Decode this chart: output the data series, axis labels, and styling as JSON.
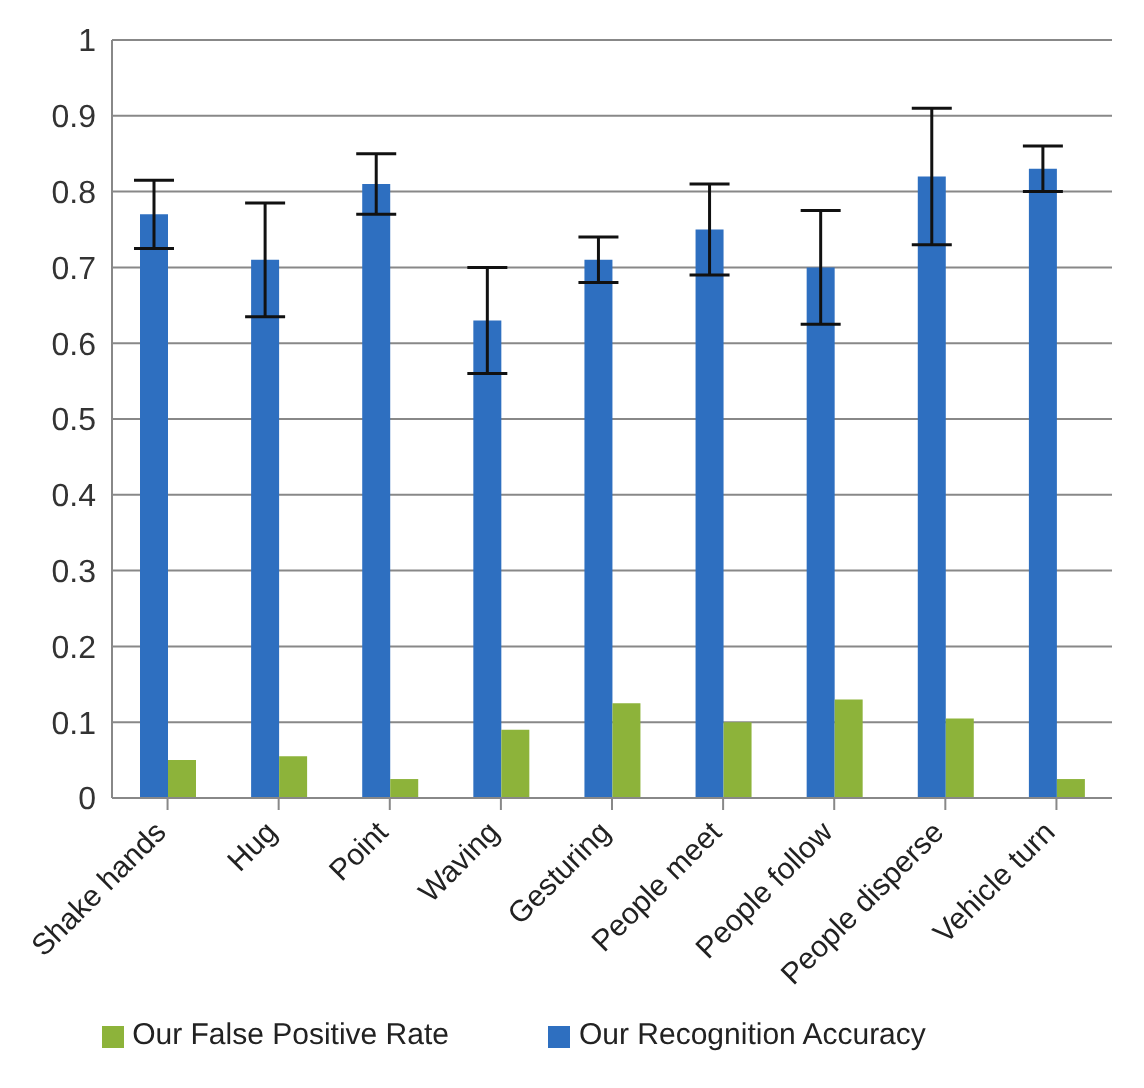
{
  "chart_data": {
    "type": "bar",
    "categories": [
      "Shake hands",
      "Hug",
      "Point",
      "Waving",
      "Gesturing",
      "People meet",
      "People follow",
      "People disperse",
      "Vehicle turn"
    ],
    "series": [
      {
        "name": "Our Recognition Accuracy",
        "color": "#2e6fc0",
        "values": [
          0.77,
          0.71,
          0.81,
          0.63,
          0.71,
          0.75,
          0.7,
          0.82,
          0.83
        ],
        "errors": [
          0.045,
          0.075,
          0.04,
          0.07,
          0.03,
          0.06,
          0.075,
          0.09,
          0.03
        ]
      },
      {
        "name": "Our False Positive Rate",
        "color": "#8db33a",
        "values": [
          0.05,
          0.055,
          0.025,
          0.09,
          0.125,
          0.1,
          0.13,
          0.105,
          0.025
        ]
      }
    ],
    "ylim": [
      0,
      1
    ],
    "yticks": [
      0,
      0.1,
      0.2,
      0.3,
      0.4,
      0.5,
      0.6,
      0.7,
      0.8,
      0.9,
      1
    ],
    "grid": "y",
    "legend": "bottom"
  }
}
